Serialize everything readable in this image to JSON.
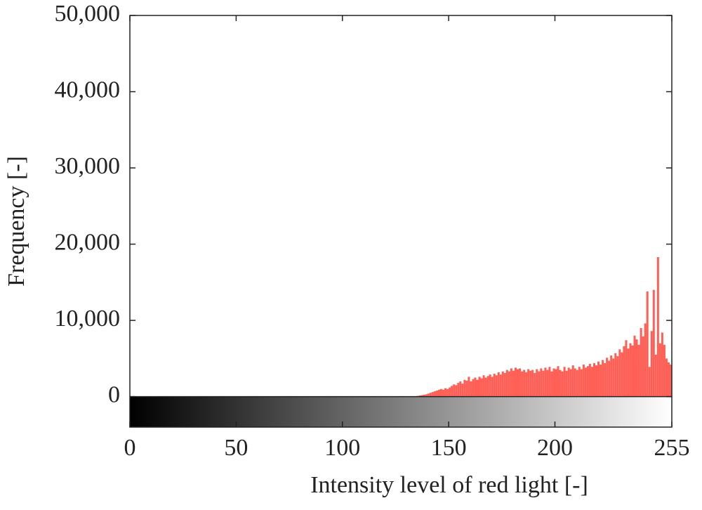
{
  "chart_data": {
    "type": "histogram",
    "xlabel": "Intensity level of red light [-]",
    "ylabel": "Frequency [-]",
    "color": "#ff5f55",
    "xlim": [
      0,
      255
    ],
    "ylim": [
      -4000,
      50000
    ],
    "xticks": [
      0,
      50,
      100,
      150,
      200,
      255
    ],
    "yticks": [
      0,
      {
        "value": 10000,
        "label": "10,000"
      },
      {
        "value": 20000,
        "label": "20,000"
      },
      {
        "value": 30000,
        "label": "30,000"
      },
      {
        "value": 40000,
        "label": "40,000"
      },
      {
        "value": 50000,
        "label": "50,000"
      }
    ],
    "bins": [
      0,
      1,
      2,
      3,
      4,
      5,
      6,
      7,
      8,
      9,
      10,
      11,
      12,
      13,
      14,
      15,
      16,
      17,
      18,
      19,
      20,
      21,
      22,
      23,
      24,
      25,
      26,
      27,
      28,
      29,
      30,
      31,
      32,
      33,
      34,
      35,
      36,
      37,
      38,
      39,
      40,
      41,
      42,
      43,
      44,
      45,
      46,
      47,
      48,
      49,
      50,
      51,
      52,
      53,
      54,
      55,
      56,
      57,
      58,
      59,
      60,
      61,
      62,
      63,
      64,
      65,
      66,
      67,
      68,
      69,
      70,
      71,
      72,
      73,
      74,
      75,
      76,
      77,
      78,
      79,
      80,
      81,
      82,
      83,
      84,
      85,
      86,
      87,
      88,
      89,
      90,
      91,
      92,
      93,
      94,
      95,
      96,
      97,
      98,
      99,
      100,
      101,
      102,
      103,
      104,
      105,
      106,
      107,
      108,
      109,
      110,
      111,
      112,
      113,
      114,
      115,
      116,
      117,
      118,
      119,
      120,
      121,
      122,
      123,
      124,
      125,
      126,
      127,
      128,
      129,
      130,
      131,
      132,
      133,
      134,
      135,
      136,
      137,
      138,
      139,
      140,
      141,
      142,
      143,
      144,
      145,
      146,
      147,
      148,
      149,
      150,
      151,
      152,
      153,
      154,
      155,
      156,
      157,
      158,
      159,
      160,
      161,
      162,
      163,
      164,
      165,
      166,
      167,
      168,
      169,
      170,
      171,
      172,
      173,
      174,
      175,
      176,
      177,
      178,
      179,
      180,
      181,
      182,
      183,
      184,
      185,
      186,
      187,
      188,
      189,
      190,
      191,
      192,
      193,
      194,
      195,
      196,
      197,
      198,
      199,
      200,
      201,
      202,
      203,
      204,
      205,
      206,
      207,
      208,
      209,
      210,
      211,
      212,
      213,
      214,
      215,
      216,
      217,
      218,
      219,
      220,
      221,
      222,
      223,
      224,
      225,
      226,
      227,
      228,
      229,
      230,
      231,
      232,
      233,
      234,
      235,
      236,
      237,
      238,
      239,
      240,
      241,
      242,
      243,
      244,
      245,
      246,
      247,
      248,
      249,
      250,
      251,
      252,
      253,
      254,
      255,
      256
    ],
    "values": [
      0,
      0,
      0,
      0,
      0,
      0,
      0,
      0,
      0,
      0,
      0,
      0,
      0,
      0,
      0,
      0,
      0,
      0,
      0,
      0,
      0,
      0,
      0,
      0,
      0,
      0,
      0,
      0,
      0,
      0,
      0,
      0,
      0,
      0,
      0,
      0,
      0,
      0,
      0,
      0,
      0,
      0,
      0,
      0,
      0,
      0,
      0,
      0,
      0,
      0,
      0,
      0,
      0,
      0,
      0,
      0,
      0,
      0,
      0,
      0,
      0,
      0,
      0,
      0,
      0,
      0,
      0,
      0,
      0,
      0,
      0,
      0,
      0,
      0,
      0,
      0,
      0,
      0,
      0,
      0,
      0,
      0,
      0,
      0,
      0,
      0,
      0,
      0,
      0,
      0,
      0,
      0,
      0,
      0,
      0,
      0,
      0,
      0,
      0,
      0,
      0,
      0,
      0,
      0,
      0,
      0,
      0,
      0,
      0,
      0,
      0,
      0,
      0,
      0,
      0,
      0,
      0,
      0,
      0,
      0,
      0,
      0,
      0,
      0,
      0,
      0,
      0,
      0,
      0,
      0,
      0,
      0,
      0,
      0,
      0,
      100,
      150,
      200,
      250,
      300,
      400,
      500,
      600,
      700,
      800,
      900,
      1000,
      900,
      1100,
      1000,
      1200,
      1400,
      1600,
      1500,
      1800,
      2000,
      1700,
      2200,
      2100,
      2600,
      2000,
      2300,
      2500,
      2200,
      2600,
      2400,
      2800,
      2500,
      2700,
      2900,
      2600,
      3000,
      2800,
      3200,
      2900,
      3300,
      3100,
      3500,
      3300,
      3700,
      3400,
      3800,
      3600,
      3700,
      3300,
      3500,
      3200,
      3600,
      3400,
      3500,
      3100,
      3600,
      3300,
      3700,
      3400,
      3800,
      3500,
      3900,
      3300,
      3700,
      3600,
      4000,
      3500,
      3300,
      3900,
      3400,
      3800,
      3600,
      4100,
      3700,
      3500,
      3900,
      3600,
      4200,
      3800,
      4000,
      4300,
      3900,
      4400,
      4100,
      4600,
      4200,
      4800,
      4400,
      5100,
      4700,
      5400,
      5000,
      5700,
      5300,
      6200,
      5800,
      6600,
      7400,
      6300,
      7000,
      6700,
      8000,
      7500,
      6800,
      9000,
      7900,
      9600,
      13800,
      3900,
      8600,
      14000,
      5500,
      18300,
      7000,
      8400,
      6800,
      5000,
      4500,
      4200,
      3800
    ]
  }
}
